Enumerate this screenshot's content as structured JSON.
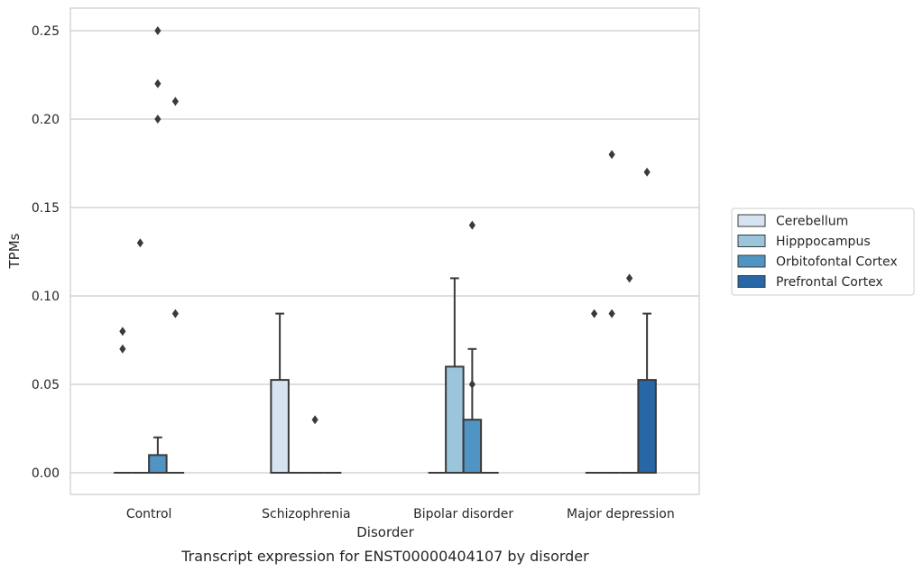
{
  "chart_data": {
    "type": "box",
    "xlabel": "Disorder",
    "ylabel": "TPMs",
    "caption": "Transcript expression for ENST00000404107 by disorder",
    "categories": [
      "Control",
      "Schizophrenia",
      "Bipolar disorder",
      "Major depression"
    ],
    "yticks": [
      "0.00",
      "0.05",
      "0.10",
      "0.15",
      "0.20",
      "0.25"
    ],
    "ylim": [
      -0.012,
      0.263
    ],
    "grid": "horizontal",
    "legend_placement": "right",
    "series": [
      {
        "name": "Cerebellum",
        "color": "#d6e4f2",
        "boxes": [
          {
            "q1": 0,
            "median": 0,
            "q3": 0,
            "whisker_low": 0,
            "whisker_high": 0,
            "outliers": [
              0.07,
              0.08
            ]
          },
          {
            "q1": 0,
            "median": 0,
            "q3": 0.0525,
            "whisker_low": 0,
            "whisker_high": 0.09,
            "outliers": []
          },
          {
            "q1": 0,
            "median": 0,
            "q3": 0,
            "whisker_low": 0,
            "whisker_high": 0,
            "outliers": []
          },
          {
            "q1": 0,
            "median": 0,
            "q3": 0,
            "whisker_low": 0,
            "whisker_high": 0,
            "outliers": [
              0.09
            ]
          }
        ]
      },
      {
        "name": "Hipppocampus",
        "color": "#9ac5db",
        "boxes": [
          {
            "q1": 0,
            "median": 0,
            "q3": 0,
            "whisker_low": 0,
            "whisker_high": 0,
            "outliers": [
              0.13
            ]
          },
          {
            "q1": 0,
            "median": 0,
            "q3": 0,
            "whisker_low": 0,
            "whisker_high": 0,
            "outliers": []
          },
          {
            "q1": 0,
            "median": 0,
            "q3": 0.06,
            "whisker_low": 0,
            "whisker_high": 0.11,
            "outliers": []
          },
          {
            "q1": 0,
            "median": 0,
            "q3": 0,
            "whisker_low": 0,
            "whisker_high": 0,
            "outliers": [
              0.09,
              0.18
            ]
          }
        ]
      },
      {
        "name": "Orbitofontal Cortex",
        "color": "#5094c3",
        "boxes": [
          {
            "q1": 0,
            "median": 0,
            "q3": 0.01,
            "whisker_low": 0,
            "whisker_high": 0.02,
            "outliers": [
              0.2,
              0.22,
              0.25
            ]
          },
          {
            "q1": 0,
            "median": 0,
            "q3": 0,
            "whisker_low": 0,
            "whisker_high": 0,
            "outliers": [
              0.03
            ]
          },
          {
            "q1": 0,
            "median": 0,
            "q3": 0.03,
            "whisker_low": 0,
            "whisker_high": 0.07,
            "outliers": [
              0.05,
              0.14
            ]
          },
          {
            "q1": 0,
            "median": 0,
            "q3": 0,
            "whisker_low": 0,
            "whisker_high": 0,
            "outliers": [
              0.11
            ]
          }
        ]
      },
      {
        "name": "Prefrontal Cortex",
        "color": "#2767a6",
        "boxes": [
          {
            "q1": 0,
            "median": 0,
            "q3": 0,
            "whisker_low": 0,
            "whisker_high": 0,
            "outliers": [
              0.09,
              0.21
            ]
          },
          {
            "q1": 0,
            "median": 0,
            "q3": 0,
            "whisker_low": 0,
            "whisker_high": 0,
            "outliers": []
          },
          {
            "q1": 0,
            "median": 0,
            "q3": 0,
            "whisker_low": 0,
            "whisker_high": 0,
            "outliers": []
          },
          {
            "q1": 0,
            "median": 0,
            "q3": 0.0525,
            "whisker_low": 0,
            "whisker_high": 0.09,
            "outliers": [
              0.17
            ]
          }
        ]
      }
    ]
  }
}
